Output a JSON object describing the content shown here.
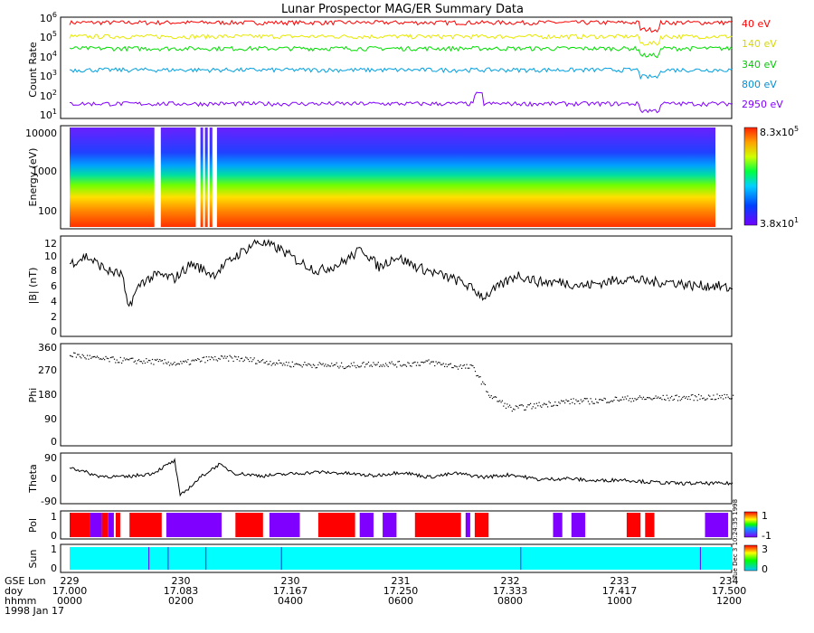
{
  "title": "Lunar Prospector MAG/ER Summary Data",
  "date_label": "1998 Jan 17",
  "stamp": "Tue Dec 3 10:24:35 1998",
  "chart_data": [
    {
      "type": "line",
      "id": "count_rate",
      "ylabel": "Count Rate",
      "yscale": "log",
      "ylim": [
        10,
        1000000
      ],
      "yticks": [
        {
          "base": "10",
          "exp": "1"
        },
        {
          "base": "10",
          "exp": "2"
        },
        {
          "base": "10",
          "exp": "3"
        },
        {
          "base": "10",
          "exp": "4"
        },
        {
          "base": "10",
          "exp": "5"
        },
        {
          "base": "10",
          "exp": "6"
        }
      ],
      "series": [
        {
          "name": "40 eV",
          "color": "#ff0000",
          "level": 600000
        },
        {
          "name": "140 eV",
          "color": "#e8e800",
          "level": 120000
        },
        {
          "name": "340 eV",
          "color": "#00dd00",
          "level": 30000
        },
        {
          "name": "800 eV",
          "color": "#00a0e0",
          "level": 2500
        },
        {
          "name": "2950 eV",
          "color": "#8000ff",
          "level": 50
        }
      ]
    },
    {
      "type": "heatmap",
      "id": "energy_spectrogram",
      "ylabel": "Energy (eV)",
      "yscale": "log",
      "ylim": [
        40,
        15000
      ],
      "yticks": [
        "100",
        "1000",
        "10000"
      ],
      "colorbar": {
        "max": {
          "base": "8.3x10",
          "exp": "5"
        },
        "min": {
          "base": "3.8x10",
          "exp": "1"
        }
      },
      "gaps_hhmm": [
        [
          "01:32",
          "01:39"
        ],
        [
          "02:17",
          "02:22"
        ],
        [
          "02:25",
          "02:27"
        ],
        [
          "02:30",
          "02:32"
        ],
        [
          "02:35",
          "02:40"
        ]
      ]
    },
    {
      "type": "line",
      "id": "b_magnitude",
      "ylabel": "|B| (nT)",
      "ylim": [
        0,
        13
      ],
      "yticks": [
        "0",
        "2",
        "4",
        "6",
        "8",
        "10",
        "12"
      ],
      "x_hours": [
        0,
        0.3,
        0.7,
        0.95,
        1.05,
        1.3,
        1.6,
        1.9,
        2.2,
        2.6,
        3.0,
        3.4,
        3.8,
        4.1,
        4.5,
        4.9,
        5.3,
        5.6,
        5.9,
        6.3,
        6.7,
        7.1,
        7.5,
        7.8,
        8.1,
        8.5,
        8.9,
        9.3,
        9.7,
        10.1,
        10.5,
        10.9,
        11.3,
        11.7,
        12.0
      ],
      "values": [
        9.5,
        10.5,
        8.5,
        8.0,
        3.5,
        7.0,
        8.0,
        7.5,
        9.5,
        8.0,
        10.5,
        12.5,
        11.5,
        10.0,
        8.5,
        9.5,
        11.5,
        9.0,
        10.5,
        9.0,
        8.0,
        7.0,
        5.0,
        6.5,
        8.0,
        7.0,
        7.0,
        6.5,
        7.0,
        7.5,
        7.0,
        7.0,
        6.5,
        6.5,
        6.0
      ]
    },
    {
      "type": "scatter",
      "id": "phi",
      "ylabel": "Phi",
      "ylim": [
        0,
        360
      ],
      "yticks": [
        "0",
        "90",
        "180",
        "270",
        "360"
      ],
      "x_hours": [
        0,
        0.5,
        1.0,
        1.5,
        2.0,
        2.5,
        3.0,
        3.5,
        4.0,
        4.5,
        5.0,
        5.5,
        6.0,
        6.5,
        7.0,
        7.3,
        7.6,
        8.0,
        8.5,
        9.0,
        9.5,
        10.0,
        10.5,
        11.0,
        11.5,
        12.0
      ],
      "values": [
        335,
        318,
        312,
        308,
        300,
        318,
        320,
        308,
        298,
        295,
        292,
        300,
        298,
        305,
        290,
        285,
        180,
        130,
        145,
        158,
        160,
        168,
        170,
        172,
        174,
        175
      ]
    },
    {
      "type": "line",
      "id": "theta",
      "ylabel": "Theta",
      "ylim": [
        -90,
        90
      ],
      "yticks": [
        "-90",
        "0",
        "90"
      ],
      "x_hours": [
        0,
        0.5,
        1.0,
        1.5,
        1.9,
        2.0,
        2.1,
        2.4,
        2.7,
        3.0,
        3.5,
        4.0,
        4.5,
        5.0,
        5.5,
        6.0,
        6.5,
        7.0,
        7.5,
        8.0,
        8.5,
        9.0,
        9.5,
        10.0,
        10.5,
        11.0,
        11.5,
        12.0
      ],
      "values": [
        45,
        10,
        5,
        20,
        70,
        -70,
        -50,
        10,
        55,
        20,
        10,
        18,
        25,
        20,
        10,
        25,
        5,
        20,
        5,
        15,
        -5,
        0,
        -10,
        -5,
        -15,
        -20,
        -20,
        -20
      ]
    },
    {
      "type": "bar",
      "id": "polarity",
      "ylabel": "Pol",
      "yticks": [
        "0",
        "1"
      ],
      "colorbar": {
        "max": "1",
        "min": "-1"
      },
      "segments_hhmm": [
        [
          "00:00",
          "00:22",
          "red"
        ],
        [
          "00:22",
          "00:35",
          "purple"
        ],
        [
          "00:35",
          "00:42",
          "red"
        ],
        [
          "00:42",
          "00:48",
          "purple"
        ],
        [
          "00:50",
          "00:55",
          "red"
        ],
        [
          "01:05",
          "01:40",
          "red"
        ],
        [
          "01:45",
          "02:45",
          "purple"
        ],
        [
          "03:00",
          "03:30",
          "red"
        ],
        [
          "03:37",
          "03:42",
          "purple"
        ],
        [
          "03:40",
          "04:10",
          "purple"
        ],
        [
          "04:30",
          "05:10",
          "red"
        ],
        [
          "05:15",
          "05:30",
          "purple"
        ],
        [
          "05:40",
          "05:55",
          "purple"
        ],
        [
          "06:15",
          "07:05",
          "red"
        ],
        [
          "07:10",
          "07:15",
          "purple"
        ],
        [
          "07:20",
          "07:35",
          "red"
        ],
        [
          "08:45",
          "08:55",
          "purple"
        ],
        [
          "09:05",
          "09:20",
          "purple"
        ],
        [
          "10:05",
          "10:20",
          "red"
        ],
        [
          "10:25",
          "10:35",
          "red"
        ],
        [
          "11:30",
          "11:55",
          "purple"
        ]
      ]
    },
    {
      "type": "bar",
      "id": "sun",
      "ylabel": "Sun",
      "yticks": [
        "0",
        "1"
      ],
      "colorbar": {
        "max": "3",
        "min": "0"
      },
      "state": "cyan",
      "markers_hhmm": [
        "01:26",
        "01:47",
        "02:28",
        "03:50",
        "08:10",
        "11:25"
      ]
    }
  ],
  "x_axis": {
    "row_labels": [
      "GSE Lon",
      "doy",
      "hhmm"
    ],
    "ticks": [
      {
        "lon": "229",
        "doy": "17.000",
        "hhmm": "0000"
      },
      {
        "lon": "230",
        "doy": "17.083",
        "hhmm": "0200"
      },
      {
        "lon": "230",
        "doy": "17.167",
        "hhmm": "0400"
      },
      {
        "lon": "231",
        "doy": "17.250",
        "hhmm": "0600"
      },
      {
        "lon": "232",
        "doy": "17.333",
        "hhmm": "0800"
      },
      {
        "lon": "233",
        "doy": "17.417",
        "hhmm": "1000"
      },
      {
        "lon": "234",
        "doy": "17.500",
        "hhmm": "1200"
      }
    ]
  }
}
